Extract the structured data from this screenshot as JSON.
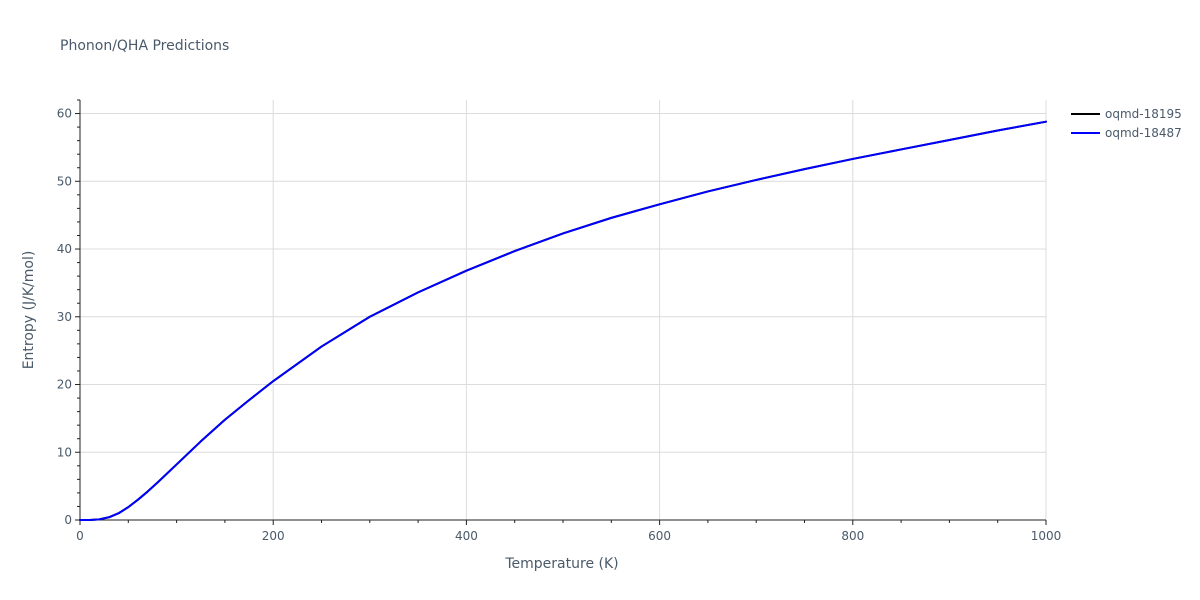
{
  "chart_data": {
    "type": "line",
    "title": "Phonon/QHA Predictions",
    "xlabel": "Temperature (K)",
    "ylabel": "Entropy (J/K/mol)",
    "xlim": [
      0,
      1000
    ],
    "ylim": [
      0,
      62
    ],
    "xticks": [
      0,
      200,
      400,
      600,
      800,
      1000
    ],
    "yticks": [
      0,
      10,
      20,
      30,
      40,
      50,
      60
    ],
    "grid": true,
    "legend_position": "top-right-outside",
    "x": [
      0,
      10,
      20,
      30,
      40,
      50,
      60,
      70,
      80,
      100,
      125,
      150,
      175,
      200,
      250,
      300,
      350,
      400,
      450,
      500,
      550,
      600,
      650,
      700,
      750,
      800,
      850,
      900,
      950,
      1000
    ],
    "series": [
      {
        "name": "oqmd-18195",
        "color": "#000000",
        "values": [
          0,
          0.0,
          0.1,
          0.4,
          1.0,
          1.9,
          3.0,
          4.2,
          5.5,
          8.2,
          11.6,
          14.8,
          17.7,
          20.5,
          25.6,
          30.0,
          33.6,
          36.8,
          39.7,
          42.3,
          44.6,
          46.6,
          48.5,
          50.2,
          51.8,
          53.3,
          54.7,
          56.1,
          57.5,
          58.8
        ]
      },
      {
        "name": "oqmd-18487",
        "color": "#0000ff",
        "values": [
          0,
          0.0,
          0.1,
          0.4,
          1.0,
          1.9,
          3.0,
          4.2,
          5.5,
          8.2,
          11.6,
          14.8,
          17.7,
          20.5,
          25.6,
          30.0,
          33.6,
          36.8,
          39.7,
          42.3,
          44.6,
          46.6,
          48.5,
          50.2,
          51.8,
          53.3,
          54.7,
          56.1,
          57.5,
          58.8
        ]
      }
    ]
  }
}
